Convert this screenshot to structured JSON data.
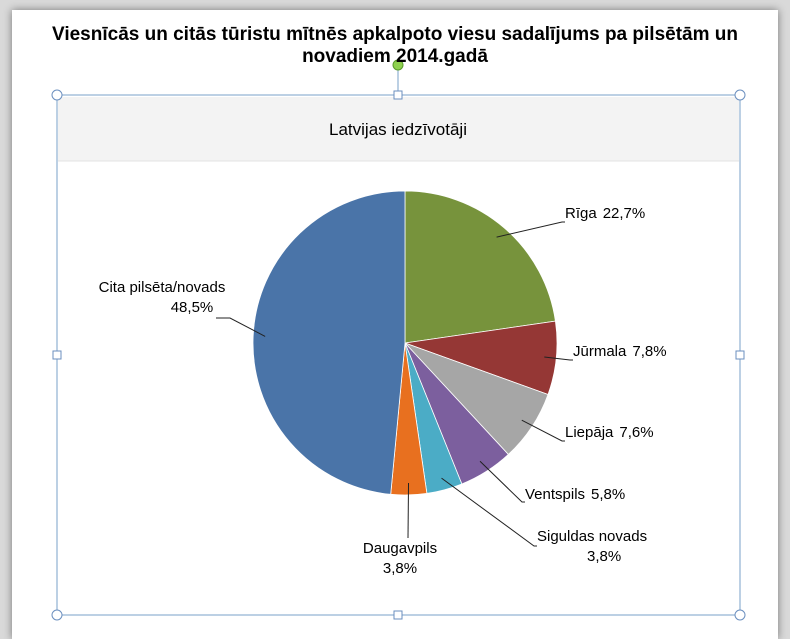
{
  "chart_data": {
    "type": "pie",
    "title": "Viesnīcās un citās tūristu mītnēs apkalpoto viesu sadalījums pa pilsētām un novadiem 2014.gadā",
    "subtitle": "Latvijas iedzīvotāji",
    "categories": [
      "Rīga",
      "Jūrmala",
      "Liepāja",
      "Ventspils",
      "Siguldas novads",
      "Daugavpils",
      "Cita pilsēta/novads"
    ],
    "values": [
      22.7,
      7.8,
      7.6,
      5.8,
      3.8,
      3.8,
      48.5
    ],
    "value_labels": [
      "22,7%",
      "7,8%",
      "7,6%",
      "5,8%",
      "3,8%",
      "3,8%",
      "48,5%"
    ],
    "colors": [
      "#77933c",
      "#953735",
      "#a6a6a6",
      "#7c5f9e",
      "#4bacc6",
      "#e8701f",
      "#4a74a8"
    ]
  }
}
